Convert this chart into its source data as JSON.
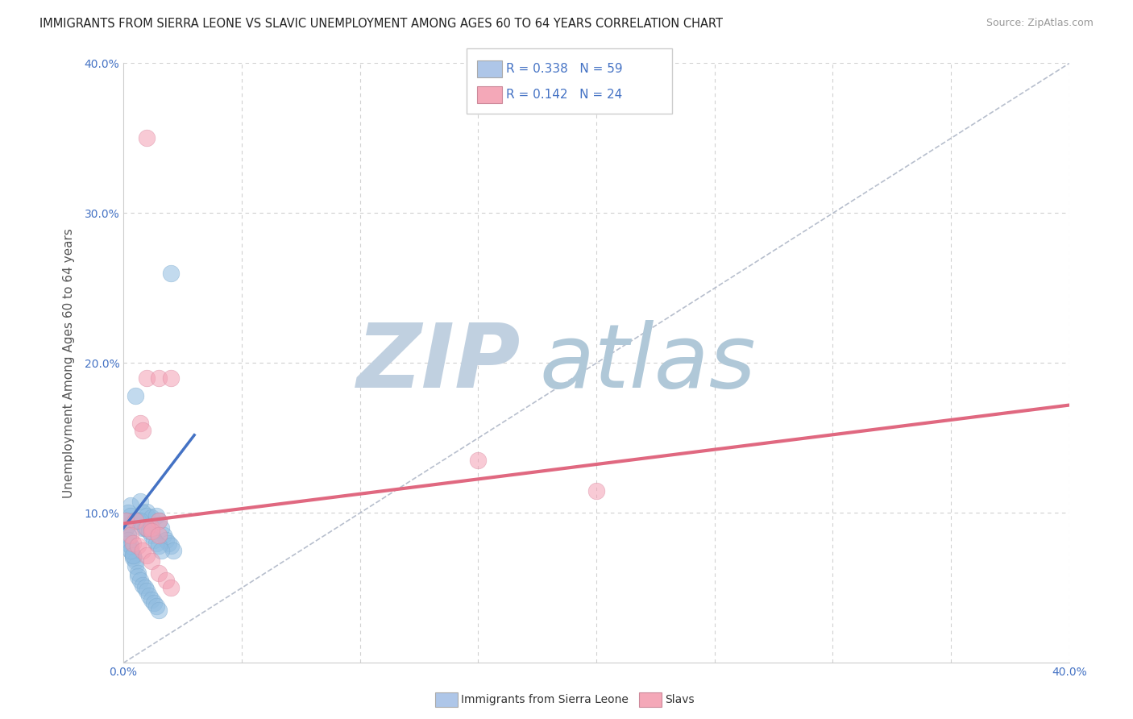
{
  "title": "IMMIGRANTS FROM SIERRA LEONE VS SLAVIC UNEMPLOYMENT AMONG AGES 60 TO 64 YEARS CORRELATION CHART",
  "source": "Source: ZipAtlas.com",
  "ylabel": "Unemployment Among Ages 60 to 64 years",
  "xlim": [
    0.0,
    0.4
  ],
  "ylim": [
    0.0,
    0.4
  ],
  "xticks": [
    0.0,
    0.05,
    0.1,
    0.15,
    0.2,
    0.25,
    0.3,
    0.35,
    0.4
  ],
  "xticklabels": [
    "0.0%",
    "",
    "",
    "",
    "",
    "",
    "",
    "",
    "40.0%"
  ],
  "yticks": [
    0.0,
    0.1,
    0.2,
    0.3,
    0.4
  ],
  "yticklabels": [
    "",
    "10.0%",
    "20.0%",
    "30.0%",
    "40.0%"
  ],
  "grid_color": "#d0d0d0",
  "background_color": "#ffffff",
  "watermark_zip": "ZIP",
  "watermark_atlas": "atlas",
  "watermark_color_zip": "#c0d0e0",
  "watermark_color_atlas": "#b0c8d8",
  "legend_R1": "0.338",
  "legend_N1": "59",
  "legend_R2": "0.142",
  "legend_N2": "24",
  "legend_color1": "#aec6e8",
  "legend_color2": "#f4a8b8",
  "blue_color": "#90bce0",
  "pink_color": "#f4a0b4",
  "blue_line_color": "#4472c4",
  "pink_line_color": "#e06880",
  "blue_scatter_x": [
    0.005,
    0.01,
    0.003,
    0.007,
    0.008,
    0.01,
    0.012,
    0.014,
    0.015,
    0.016,
    0.017,
    0.018,
    0.019,
    0.02,
    0.021,
    0.002,
    0.003,
    0.004,
    0.005,
    0.006,
    0.007,
    0.008,
    0.009,
    0.01,
    0.011,
    0.012,
    0.013,
    0.014,
    0.015,
    0.016,
    0.001,
    0.001,
    0.002,
    0.002,
    0.003,
    0.003,
    0.004,
    0.004,
    0.005,
    0.005,
    0.006,
    0.006,
    0.007,
    0.008,
    0.009,
    0.01,
    0.011,
    0.012,
    0.013,
    0.014,
    0.015,
    0.001,
    0.001,
    0.002,
    0.002,
    0.003,
    0.003,
    0.004,
    0.02
  ],
  "blue_scatter_y": [
    0.178,
    0.101,
    0.105,
    0.108,
    0.1,
    0.098,
    0.097,
    0.098,
    0.095,
    0.09,
    0.085,
    0.082,
    0.08,
    0.078,
    0.075,
    0.1,
    0.098,
    0.095,
    0.095,
    0.095,
    0.095,
    0.09,
    0.09,
    0.09,
    0.088,
    0.085,
    0.082,
    0.08,
    0.078,
    0.075,
    0.095,
    0.09,
    0.085,
    0.08,
    0.078,
    0.075,
    0.072,
    0.07,
    0.068,
    0.065,
    0.06,
    0.058,
    0.055,
    0.052,
    0.05,
    0.048,
    0.045,
    0.042,
    0.04,
    0.038,
    0.035,
    0.095,
    0.09,
    0.085,
    0.082,
    0.078,
    0.075,
    0.072,
    0.26
  ],
  "pink_scatter_x": [
    0.01,
    0.01,
    0.015,
    0.02,
    0.007,
    0.008,
    0.012,
    0.015,
    0.15,
    0.2,
    0.001,
    0.005,
    0.01,
    0.012,
    0.015,
    0.003,
    0.004,
    0.006,
    0.008,
    0.01,
    0.012,
    0.015,
    0.018,
    0.02
  ],
  "pink_scatter_y": [
    0.35,
    0.19,
    0.19,
    0.19,
    0.16,
    0.155,
    0.09,
    0.095,
    0.135,
    0.115,
    0.095,
    0.095,
    0.09,
    0.088,
    0.085,
    0.085,
    0.08,
    0.078,
    0.075,
    0.072,
    0.068,
    0.06,
    0.055,
    0.05
  ],
  "blue_trend_x": [
    0.0,
    0.03
  ],
  "blue_trend_y": [
    0.09,
    0.152
  ],
  "pink_trend_x": [
    0.0,
    0.4
  ],
  "pink_trend_y": [
    0.093,
    0.172
  ],
  "dashed_trend_x": [
    0.0,
    0.4
  ],
  "dashed_trend_y": [
    0.0,
    0.4
  ]
}
